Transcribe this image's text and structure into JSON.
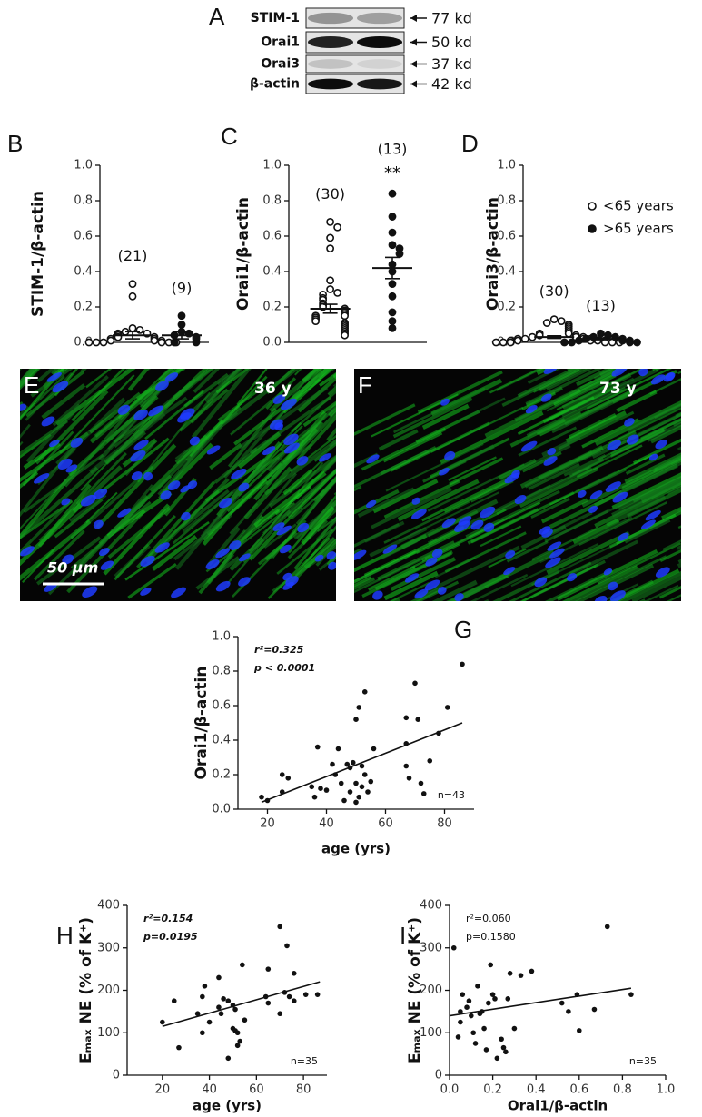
{
  "blot": {
    "panel": "A",
    "rows": [
      {
        "protein": "STIM-1",
        "size": "77 kd"
      },
      {
        "protein": "Orai1",
        "size": "50 kd"
      },
      {
        "protein": "Orai3",
        "size": "37 kd"
      },
      {
        "protein": "β-actin",
        "size": "42 kd"
      }
    ]
  },
  "micrographs": [
    {
      "panel": "E",
      "label": "36 y",
      "scale_bar": "50 μm"
    },
    {
      "panel": "F",
      "label": "73 y"
    }
  ],
  "chart_data": [
    {
      "type": "dotplot",
      "panel": "B",
      "ylabel": "STIM-1/β-actin",
      "ylim": [
        0,
        1.0
      ],
      "yticks": [
        {
          "value": 0,
          "label": "0.0"
        },
        {
          "value": 0.2,
          "label": "0.2"
        },
        {
          "value": 0.4,
          "label": "0.4"
        },
        {
          "value": 0.6,
          "label": "0.6"
        },
        {
          "value": 0.8,
          "label": "0.8"
        },
        {
          "value": 1.0,
          "label": "1.0"
        }
      ],
      "groups": [
        {
          "n_label": "(21)",
          "marker": "open",
          "values": [
            0.33,
            0.26,
            0.08,
            0.07,
            0.06,
            0.05,
            0.05,
            0.04,
            0.03,
            0.03,
            0.02,
            0.02,
            0.01,
            0.01,
            0.01,
            0.0,
            0.0,
            0.0,
            0.0,
            0.0,
            0.0
          ],
          "mean": 0.04,
          "sem": 0.02
        },
        {
          "n_label": "(9)",
          "marker": "filled",
          "values": [
            0.15,
            0.1,
            0.06,
            0.05,
            0.04,
            0.03,
            0.02,
            0.0,
            0.0
          ],
          "mean": 0.04,
          "sem": 0.02
        }
      ]
    },
    {
      "type": "dotplot",
      "panel": "C",
      "ylabel": "Orai1/β-actin",
      "ylim": [
        0,
        1.0
      ],
      "yticks": [
        {
          "value": 0,
          "label": "0.0"
        },
        {
          "value": 0.2,
          "label": "0.2"
        },
        {
          "value": 0.4,
          "label": "0.4"
        },
        {
          "value": 0.6,
          "label": "0.6"
        },
        {
          "value": 0.8,
          "label": "0.8"
        },
        {
          "value": 1.0,
          "label": "1.0"
        }
      ],
      "groups": [
        {
          "n_label": "(30)",
          "marker": "open",
          "values": [
            0.68,
            0.65,
            0.59,
            0.53,
            0.35,
            0.3,
            0.28,
            0.27,
            0.25,
            0.24,
            0.22,
            0.21,
            0.2,
            0.19,
            0.18,
            0.17,
            0.16,
            0.15,
            0.15,
            0.14,
            0.13,
            0.12,
            0.11,
            0.1,
            0.09,
            0.08,
            0.07,
            0.06,
            0.05,
            0.04
          ],
          "mean": 0.19,
          "sem": 0.025
        },
        {
          "n_label": "(13)",
          "marker": "filled",
          "significance": "**",
          "values": [
            0.84,
            0.71,
            0.62,
            0.55,
            0.53,
            0.5,
            0.44,
            0.4,
            0.33,
            0.26,
            0.17,
            0.12,
            0.08
          ],
          "mean": 0.42,
          "sem": 0.06
        }
      ]
    },
    {
      "type": "dotplot",
      "panel": "D",
      "ylabel": "Orai3/β-actin",
      "ylim": [
        0,
        1.0
      ],
      "yticks": [
        {
          "value": 0,
          "label": "0.0"
        },
        {
          "value": 0.2,
          "label": "0.2"
        },
        {
          "value": 0.4,
          "label": "0.4"
        },
        {
          "value": 0.6,
          "label": "0.6"
        },
        {
          "value": 0.8,
          "label": "0.8"
        },
        {
          "value": 1.0,
          "label": "1.0"
        }
      ],
      "groups": [
        {
          "name": "<65 years",
          "n_label": "(30)",
          "marker": "open",
          "values": [
            0.13,
            0.12,
            0.11,
            0.1,
            0.09,
            0.08,
            0.07,
            0.06,
            0.05,
            0.05,
            0.04,
            0.04,
            0.03,
            0.03,
            0.03,
            0.02,
            0.02,
            0.02,
            0.02,
            0.01,
            0.01,
            0.01,
            0.01,
            0.01,
            0,
            0,
            0,
            0,
            0,
            0
          ],
          "mean": 0.03,
          "sem": 0.007
        },
        {
          "name": ">65 years",
          "n_label": "(13)",
          "marker": "filled",
          "values": [
            0.05,
            0.04,
            0.03,
            0.03,
            0.02,
            0.02,
            0.01,
            0.01,
            0.01,
            0,
            0,
            0,
            0
          ],
          "mean": 0.02,
          "sem": 0.005
        }
      ]
    },
    {
      "type": "scatter",
      "panel": "G",
      "ylabel": "Orai1/β-actin",
      "xlabel": "age (yrs)",
      "stats": [
        "r²=0.325",
        "p < 0.0001"
      ],
      "n_label": "n=43",
      "xlim": [
        10,
        90
      ],
      "xticks": [
        20,
        40,
        60,
        80
      ],
      "ylim": [
        0,
        1.0
      ],
      "yticks": [
        {
          "value": 0,
          "label": "0.0"
        },
        {
          "value": 0.2,
          "label": "0.2"
        },
        {
          "value": 0.4,
          "label": "0.4"
        },
        {
          "value": 0.6,
          "label": "0.6"
        },
        {
          "value": 0.8,
          "label": "0.8"
        },
        {
          "value": 1.0,
          "label": "1.0"
        }
      ],
      "x": [
        18,
        20,
        25,
        25,
        27,
        35,
        36,
        37,
        38,
        40,
        42,
        43,
        44,
        45,
        46,
        47,
        48,
        48,
        49,
        50,
        50,
        50,
        51,
        51,
        52,
        52,
        53,
        53,
        54,
        55,
        56,
        67,
        67,
        67,
        68,
        70,
        71,
        72,
        73,
        75,
        78,
        81,
        86
      ],
      "y": [
        0.07,
        0.05,
        0.1,
        0.2,
        0.18,
        0.13,
        0.07,
        0.36,
        0.12,
        0.11,
        0.26,
        0.2,
        0.35,
        0.15,
        0.05,
        0.26,
        0.1,
        0.24,
        0.27,
        0.04,
        0.15,
        0.52,
        0.59,
        0.07,
        0.25,
        0.13,
        0.68,
        0.2,
        0.1,
        0.16,
        0.35,
        0.53,
        0.38,
        0.25,
        0.18,
        0.73,
        0.52,
        0.15,
        0.09,
        0.28,
        0.44,
        0.59,
        0.84
      ],
      "fit": {
        "x": [
          18,
          86
        ],
        "y": [
          0.04,
          0.5
        ]
      }
    },
    {
      "type": "scatter",
      "panel": "H",
      "ylabel": "Eₘₐₓ NE (% of K⁺)",
      "xlabel": "age (yrs)",
      "stats": [
        "r²=0.154",
        "p=0.0195"
      ],
      "n_label": "n=35",
      "xlim": [
        5,
        90
      ],
      "xticks": [
        20,
        40,
        60,
        80
      ],
      "ylim": [
        0,
        400
      ],
      "yticks": [
        0,
        100,
        200,
        300,
        400
      ],
      "x": [
        20,
        25,
        27,
        35,
        37,
        37,
        38,
        40,
        44,
        44,
        45,
        46,
        48,
        48,
        50,
        50,
        51,
        51,
        52,
        52,
        53,
        54,
        55,
        64,
        65,
        65,
        70,
        70,
        72,
        73,
        74,
        76,
        76,
        81,
        86
      ],
      "y": [
        125,
        175,
        65,
        145,
        100,
        185,
        210,
        125,
        230,
        160,
        145,
        180,
        175,
        40,
        110,
        165,
        155,
        105,
        100,
        70,
        80,
        260,
        130,
        185,
        250,
        170,
        350,
        145,
        195,
        305,
        185,
        240,
        175,
        190,
        190
      ],
      "fit": {
        "x": [
          20,
          87
        ],
        "y": [
          115,
          220
        ]
      }
    },
    {
      "type": "scatter",
      "panel": "I",
      "ylabel": "Eₘₐₓ NE (% of K⁺)",
      "xlabel": "Orai1/β-actin",
      "stats": [
        "r²=0.060",
        "p=0.1580"
      ],
      "n_label": "n=35",
      "xlim": [
        0,
        1.0
      ],
      "xticks": [
        {
          "value": 0,
          "label": "0.0"
        },
        {
          "value": 0.2,
          "label": "0.2"
        },
        {
          "value": 0.4,
          "label": "0.4"
        },
        {
          "value": 0.6,
          "label": "0.6"
        },
        {
          "value": 0.8,
          "label": "0.8"
        },
        {
          "value": 1.0,
          "label": "1.0"
        }
      ],
      "ylim": [
        0,
        400
      ],
      "yticks": [
        0,
        100,
        200,
        300,
        400
      ],
      "x": [
        0.02,
        0.04,
        0.05,
        0.05,
        0.06,
        0.08,
        0.09,
        0.1,
        0.11,
        0.12,
        0.13,
        0.14,
        0.15,
        0.16,
        0.17,
        0.18,
        0.19,
        0.2,
        0.21,
        0.22,
        0.24,
        0.25,
        0.26,
        0.27,
        0.28,
        0.3,
        0.33,
        0.38,
        0.52,
        0.55,
        0.59,
        0.6,
        0.67,
        0.73,
        0.84
      ],
      "y": [
        300,
        90,
        150,
        125,
        190,
        160,
        175,
        140,
        100,
        75,
        210,
        145,
        150,
        110,
        60,
        170,
        260,
        190,
        180,
        40,
        85,
        65,
        55,
        180,
        240,
        110,
        235,
        245,
        170,
        150,
        190,
        105,
        155,
        350,
        190
      ],
      "fit": {
        "x": [
          0,
          0.84
        ],
        "y": [
          140,
          205
        ]
      }
    }
  ]
}
